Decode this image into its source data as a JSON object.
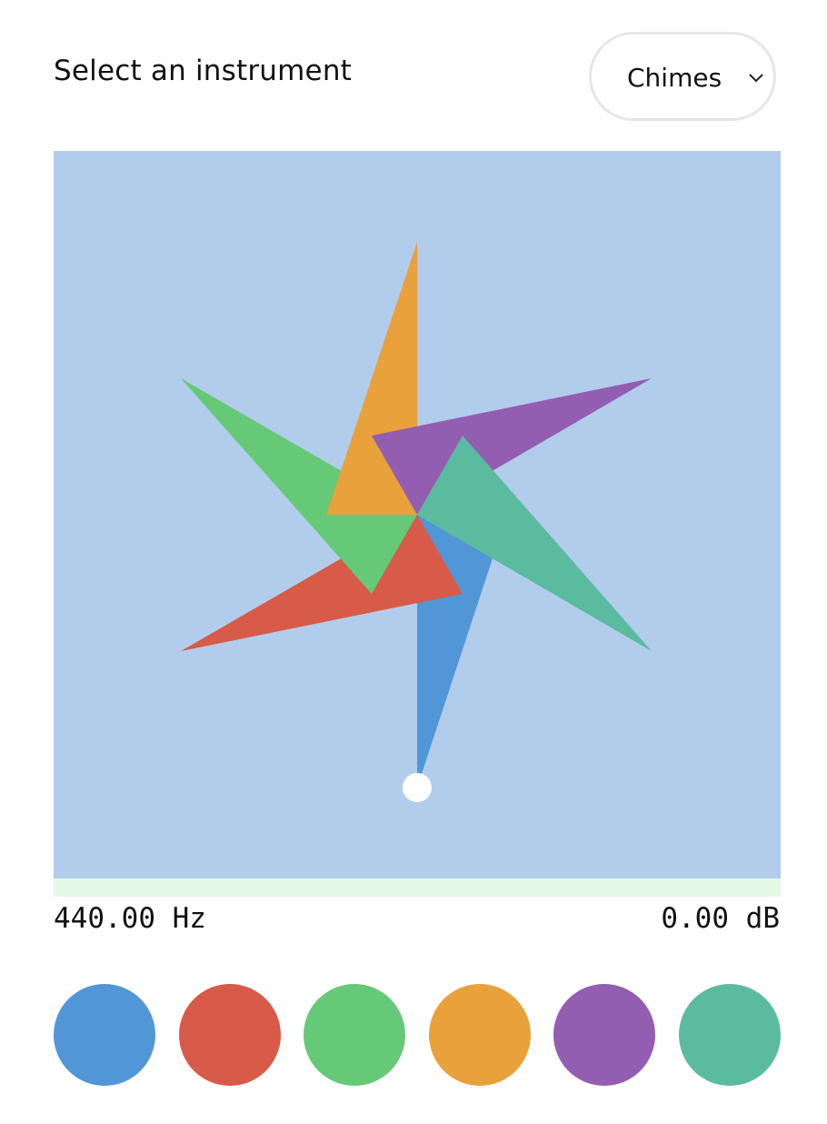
{
  "header": {
    "label": "Select an instrument"
  },
  "instrument_select": {
    "selected": "Chimes",
    "icon": "chevron-down-icon"
  },
  "readouts": {
    "frequency": "440.00 Hz",
    "volume": "0.00 dB",
    "level_fraction": 0
  },
  "pinwheel": {
    "background": "#b2cceb",
    "blades": [
      {
        "name": "blue",
        "color": "#5196d7"
      },
      {
        "name": "red",
        "color": "#d85a48"
      },
      {
        "name": "green",
        "color": "#66c977"
      },
      {
        "name": "orange",
        "color": "#e8a13b"
      },
      {
        "name": "purple",
        "color": "#935db2"
      },
      {
        "name": "teal",
        "color": "#5bbb9f"
      }
    ],
    "handle_color": "#ffffff"
  },
  "swatches": [
    {
      "name": "blue",
      "color": "#5196d7"
    },
    {
      "name": "red",
      "color": "#d85a48"
    },
    {
      "name": "green",
      "color": "#66c977"
    },
    {
      "name": "orange",
      "color": "#e8a13b"
    },
    {
      "name": "purple",
      "color": "#935db2"
    },
    {
      "name": "teal",
      "color": "#5bbb9f"
    }
  ]
}
